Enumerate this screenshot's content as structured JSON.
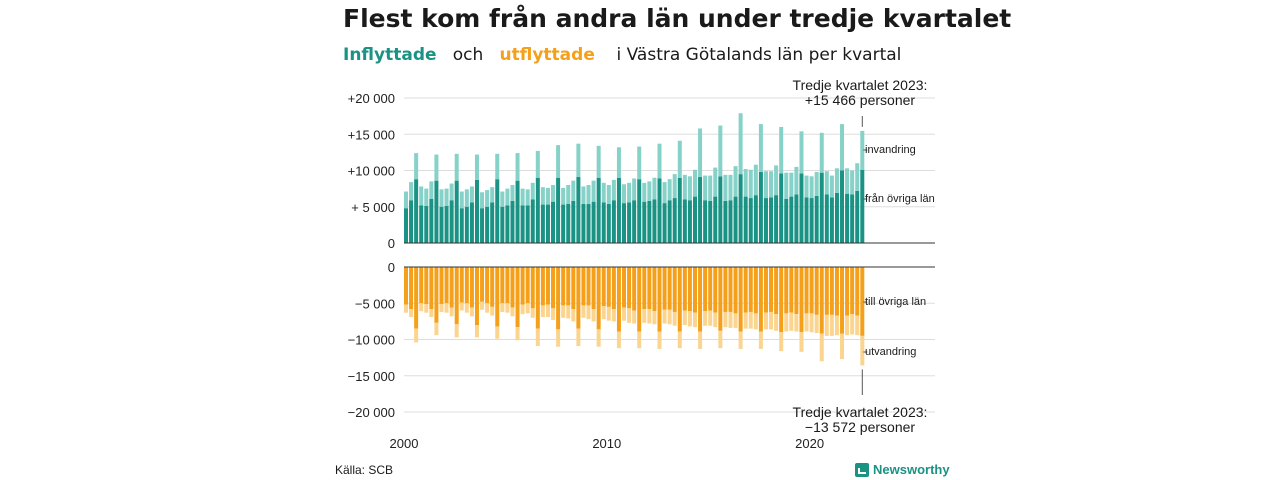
{
  "title": "Flest kom från andra län under tredje kvartalet",
  "subtitle": {
    "inflow_word": "Inflyttade",
    "och": "och",
    "outflow_word": "utflyttade",
    "rest": "i Västra Götalands län per kvartal"
  },
  "annotations": {
    "top_line1": "Tredje kvartalet 2023:",
    "top_line2": "+15 466 personer",
    "bottom_line1": "Tredje kvartalet 2023:",
    "bottom_line2": "−13 572 personer"
  },
  "side_labels": {
    "invandring": "invandring",
    "fran_ovriga_lan": "från övriga län",
    "till_ovriga_lan": "till övriga län",
    "utvandring": "utvandring"
  },
  "source": "Källa: SCB",
  "brand": "Newsworthy",
  "colors": {
    "in_dark": "#1a9284",
    "in_light": "#86d1c8",
    "out_dark": "#f5a01a",
    "out_light": "#fbd58f"
  },
  "chart_data": {
    "type": "bar",
    "subtype": "stacked-diverging",
    "x_start": "2000 Q1",
    "x_tick_labels": [
      "2000",
      "2010",
      "2020"
    ],
    "y_ticks_top": [
      "+20 000",
      "+15 000",
      "+10 000",
      "+ 5 000",
      "0"
    ],
    "y_ticks_bottom": [
      "0",
      "−5 000",
      "−10 000",
      "−15 000",
      "−20 000"
    ],
    "ylim_top": [
      0,
      20000
    ],
    "ylim_bottom": [
      -20000,
      0
    ],
    "grid": true,
    "series": [
      {
        "name": "från övriga län",
        "values": [
          4800,
          5900,
          8800,
          5200,
          5100,
          6100,
          8600,
          5000,
          5100,
          5900,
          8600,
          4800,
          5000,
          5600,
          8700,
          4800,
          5000,
          5600,
          8800,
          5000,
          5200,
          5800,
          8600,
          5200,
          5200,
          6000,
          9000,
          5300,
          5300,
          5700,
          9000,
          5300,
          5400,
          5800,
          9100,
          5400,
          5400,
          5700,
          9000,
          5600,
          5400,
          5900,
          9000,
          5500,
          5600,
          5900,
          8800,
          5700,
          5800,
          6000,
          8900,
          5500,
          5900,
          6200,
          9000,
          6000,
          5900,
          6400,
          9100,
          5900,
          5800,
          6400,
          9200,
          5800,
          5900,
          6400,
          9500,
          6400,
          6200,
          6600,
          9800,
          6200,
          6300,
          6600,
          9600,
          6100,
          6400,
          6700,
          9600,
          6300,
          6200,
          6500,
          9700,
          6700,
          6300,
          6900,
          10000,
          6800,
          6700,
          7200,
          10100
        ]
      },
      {
        "name": "invandring",
        "values": [
          2300,
          2500,
          3600,
          2600,
          2400,
          2400,
          3600,
          2400,
          2400,
          2300,
          3700,
          2300,
          2400,
          2200,
          3500,
          2200,
          2300,
          2100,
          3500,
          2100,
          2300,
          2200,
          3800,
          2300,
          2200,
          2300,
          3700,
          2400,
          2300,
          2300,
          4500,
          2300,
          2600,
          2800,
          4600,
          2400,
          2600,
          2900,
          4400,
          2700,
          2600,
          2800,
          4200,
          2600,
          2700,
          3000,
          4500,
          2600,
          2700,
          3000,
          4800,
          2900,
          2900,
          3300,
          5100,
          3400,
          3300,
          3700,
          6700,
          3400,
          3500,
          4000,
          7000,
          3600,
          3500,
          4200,
          8400,
          3800,
          3900,
          4200,
          6600,
          3700,
          3600,
          4100,
          6400,
          3600,
          3300,
          3800,
          5800,
          3000,
          3000,
          3300,
          5500,
          3200,
          3000,
          3400,
          6400,
          3500,
          3300,
          3800,
          5366
        ]
      },
      {
        "name": "till övriga län",
        "values": [
          5200,
          5800,
          8500,
          5000,
          5100,
          5800,
          7700,
          5100,
          5000,
          5600,
          7900,
          4900,
          5000,
          5600,
          8000,
          4800,
          5000,
          5500,
          8200,
          5000,
          5000,
          5600,
          8300,
          5200,
          5000,
          5700,
          8500,
          5300,
          5200,
          5700,
          8600,
          5300,
          5300,
          5800,
          8500,
          5300,
          5300,
          5800,
          8600,
          5400,
          5500,
          5800,
          8900,
          5600,
          5700,
          6000,
          8900,
          5800,
          5800,
          6100,
          8900,
          5900,
          5900,
          6200,
          8900,
          6000,
          6100,
          6300,
          8900,
          6100,
          6000,
          6300,
          8800,
          6200,
          6200,
          6400,
          8900,
          6300,
          6200,
          6400,
          8900,
          6300,
          6200,
          6500,
          9000,
          6400,
          6300,
          6500,
          9000,
          6400,
          6400,
          6600,
          9200,
          6600,
          6600,
          6700,
          9200,
          6700,
          6500,
          6700,
          9500
        ]
      },
      {
        "name": "utvandring",
        "values": [
          1100,
          1100,
          1900,
          1100,
          1200,
          1100,
          1700,
          1100,
          1300,
          1200,
          1800,
          1100,
          1300,
          1200,
          1700,
          1100,
          1300,
          1200,
          1700,
          1200,
          1300,
          1200,
          1800,
          1300,
          1400,
          1300,
          2400,
          1600,
          1700,
          1600,
          2400,
          1700,
          1800,
          1700,
          2400,
          1700,
          1900,
          1700,
          2400,
          1800,
          1900,
          1700,
          2300,
          1800,
          2000,
          1800,
          2300,
          1900,
          2000,
          1800,
          2400,
          1900,
          2000,
          1900,
          2300,
          2000,
          2100,
          2000,
          2400,
          2000,
          2100,
          2000,
          2400,
          2100,
          2200,
          2000,
          2400,
          2200,
          2300,
          2200,
          2400,
          2300,
          2400,
          2300,
          2600,
          2500,
          2500,
          2400,
          2700,
          2500,
          2600,
          2500,
          3800,
          2900,
          2900,
          2700,
          3500,
          2700,
          2800,
          2700,
          4072
        ]
      }
    ],
    "last_period": {
      "label": "Tredje kvartalet 2023",
      "total_in": 15466,
      "total_out": -13572
    }
  }
}
